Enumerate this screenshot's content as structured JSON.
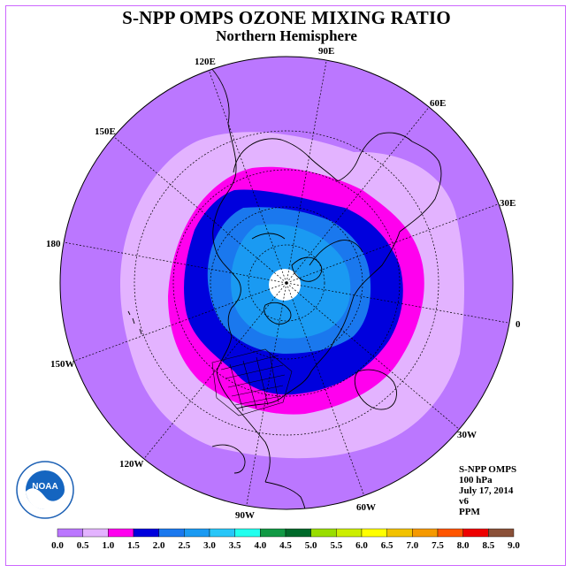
{
  "title": "S-NPP OMPS OZONE MIXING RATIO",
  "subtitle": "Northern Hemisphere",
  "longitude_labels": [
    "90E",
    "60E",
    "30E",
    "0",
    "30W",
    "60W",
    "90W",
    "120W",
    "150W",
    "180",
    "150E",
    "120E"
  ],
  "info": {
    "instrument": "S-NPP OMPS",
    "level": "100 hPa",
    "date": "July 17, 2014",
    "version": "v6",
    "units": "PPM"
  },
  "logo": {
    "text": "NOAA",
    "ring_text": "NATIONAL OCEANIC AND ATMOSPHERIC ADMINISTRATION · U.S. DEPARTMENT OF COMMERCE"
  },
  "colorbar": {
    "labels": [
      "0.0",
      "0.5",
      "1.0",
      "1.5",
      "2.0",
      "2.5",
      "3.0",
      "3.5",
      "4.0",
      "4.5",
      "5.0",
      "5.5",
      "6.0",
      "6.5",
      "7.0",
      "7.5",
      "8.0",
      "8.5",
      "9.0"
    ],
    "colors": [
      "#bb77ff",
      "#e3b3ff",
      "#ff00ee",
      "#0000dd",
      "#1a78ee",
      "#1a9af2",
      "#28c6f8",
      "#22ffee",
      "#119944",
      "#006a2a",
      "#99dd00",
      "#ccee00",
      "#ffff00",
      "#f2c200",
      "#f59900",
      "#ff5500",
      "#ee0000",
      "#8a5038"
    ]
  },
  "map_colors": {
    "bg": "#bb77ff",
    "lavender": "#e3b3ff",
    "magenta": "#ff00ee",
    "blue": "#0000dd",
    "mid_blue": "#1a78ee",
    "light_blue": "#1a9af2"
  }
}
